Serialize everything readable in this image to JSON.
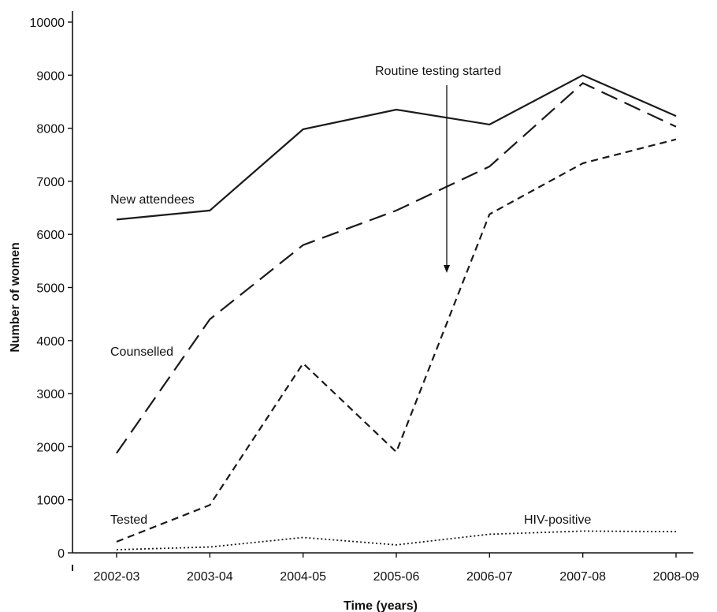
{
  "chart_data": {
    "type": "line",
    "xlabel": "Time (years)",
    "ylabel": "Number of women",
    "ylim": [
      0,
      10000
    ],
    "yticks": [
      0,
      1000,
      2000,
      3000,
      4000,
      5000,
      6000,
      7000,
      8000,
      9000,
      10000
    ],
    "categories": [
      "2002-03",
      "2003-04",
      "2004-05",
      "2005-06",
      "2006-07",
      "2007-08",
      "2008-09"
    ],
    "legend": "inline labels",
    "grid": false,
    "series": [
      {
        "name": "New attendees",
        "style": "solid",
        "values": [
          6280,
          6450,
          7980,
          8350,
          8070,
          9000,
          8230
        ]
      },
      {
        "name": "Counselled",
        "style": "long-dash",
        "values": [
          1880,
          4400,
          5800,
          6450,
          7280,
          8850,
          8030
        ]
      },
      {
        "name": "Tested",
        "style": "short-dash",
        "values": [
          210,
          900,
          3570,
          1900,
          6380,
          7340,
          7790
        ]
      },
      {
        "name": "HIV-positive",
        "style": "dotted",
        "values": [
          60,
          110,
          290,
          150,
          350,
          410,
          400
        ]
      }
    ],
    "annotation": {
      "text": "Routine testing started"
    }
  }
}
